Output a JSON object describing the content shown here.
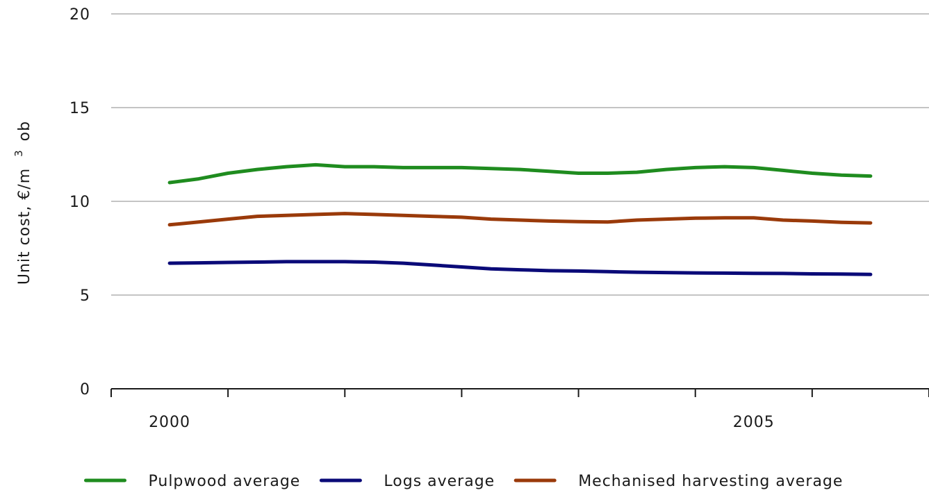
{
  "chart_data": {
    "type": "line",
    "ylabel_main": "Unit cost, €/m",
    "ylabel_sup": "3",
    "ylabel_end": " ob",
    "xlabel": "",
    "ylim": [
      0,
      20
    ],
    "yticks": [
      0,
      5,
      10,
      15,
      20
    ],
    "xlim": [
      1999.5,
      2006.5
    ],
    "xticks": [
      1999.5,
      2000.5,
      2001.5,
      2002.5,
      2003.5,
      2004.5,
      2005.5,
      2006.5
    ],
    "xtick_labels": [
      {
        "label": "2000",
        "x": 2000
      },
      {
        "label": "2005",
        "x": 2005
      }
    ],
    "grid": "horizontal",
    "legend_position": "bottom",
    "x": [
      2000.0,
      2000.25,
      2000.5,
      2000.75,
      2001.0,
      2001.25,
      2001.5,
      2001.75,
      2002.0,
      2002.25,
      2002.5,
      2002.75,
      2003.0,
      2003.25,
      2003.5,
      2003.75,
      2004.0,
      2004.25,
      2004.5,
      2004.75,
      2005.0,
      2005.25,
      2005.5,
      2005.75,
      2006.0
    ],
    "series": [
      {
        "name": "Pulpwood average",
        "color": "#1f8c1f",
        "values": [
          11.0,
          11.2,
          11.5,
          11.7,
          11.85,
          11.95,
          11.85,
          11.85,
          11.8,
          11.8,
          11.8,
          11.75,
          11.7,
          11.6,
          11.5,
          11.5,
          11.55,
          11.7,
          11.8,
          11.85,
          11.8,
          11.65,
          11.5,
          11.4,
          11.35
        ]
      },
      {
        "name": "Logs average",
        "color": "#0a0a78",
        "values": [
          6.7,
          6.72,
          6.74,
          6.76,
          6.78,
          6.78,
          6.78,
          6.76,
          6.7,
          6.6,
          6.5,
          6.4,
          6.35,
          6.3,
          6.28,
          6.25,
          6.22,
          6.2,
          6.18,
          6.17,
          6.16,
          6.15,
          6.13,
          6.12,
          6.1
        ]
      },
      {
        "name": "Mechanised harvesting average",
        "color": "#9a3a0a",
        "values": [
          8.75,
          8.9,
          9.05,
          9.2,
          9.25,
          9.3,
          9.35,
          9.3,
          9.25,
          9.2,
          9.15,
          9.05,
          9.0,
          8.95,
          8.92,
          8.9,
          9.0,
          9.05,
          9.1,
          9.12,
          9.12,
          9.0,
          8.95,
          8.88,
          8.85
        ]
      }
    ]
  }
}
